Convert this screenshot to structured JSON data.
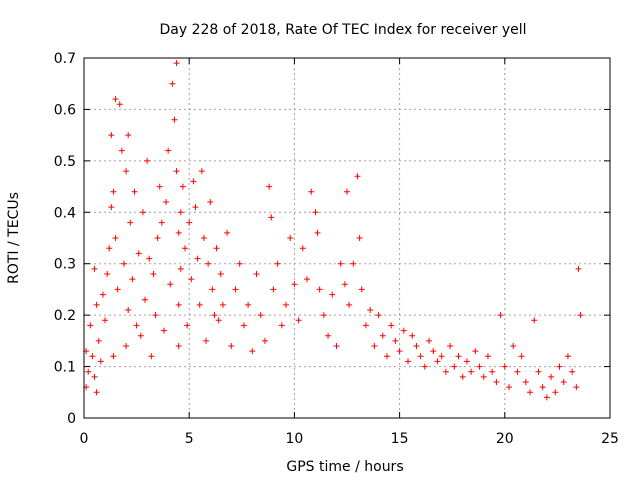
{
  "chart_data": {
    "type": "scatter",
    "title": "Day 228 of 2018, Rate Of TEC Index for receiver yell",
    "xlabel": "GPS time / hours",
    "ylabel": "ROTI / TECUs",
    "xlim": [
      0,
      25
    ],
    "ylim": [
      0,
      0.7
    ],
    "xticks": [
      0,
      5,
      10,
      15,
      20,
      25
    ],
    "yticks": [
      0,
      0.1,
      0.2,
      0.3,
      0.4,
      0.5,
      0.6,
      0.7
    ],
    "xtick_labels": [
      "0",
      "5",
      "10",
      "15",
      "20",
      "25"
    ],
    "ytick_labels": [
      "0",
      "0.1",
      "0.2",
      "0.3",
      "0.4",
      "0.5",
      "0.6",
      "0.7"
    ],
    "grid": true,
    "marker": "plus",
    "marker_color": "#ff0000",
    "series": [
      {
        "name": "ROTI",
        "x": [
          0.1,
          0.1,
          0.2,
          0.3,
          0.4,
          0.5,
          0.5,
          0.6,
          0.6,
          0.7,
          0.8,
          0.9,
          1.0,
          1.1,
          1.2,
          1.3,
          1.3,
          1.4,
          1.4,
          1.5,
          1.5,
          1.6,
          1.7,
          1.8,
          1.9,
          2.0,
          2.0,
          2.1,
          2.1,
          2.2,
          2.3,
          2.4,
          2.5,
          2.6,
          2.7,
          2.8,
          2.9,
          3.0,
          3.1,
          3.2,
          3.3,
          3.4,
          3.5,
          3.6,
          3.7,
          3.8,
          3.9,
          4.0,
          4.1,
          4.2,
          4.3,
          4.4,
          4.4,
          4.5,
          4.5,
          4.5,
          4.6,
          4.6,
          4.7,
          4.8,
          4.9,
          5.0,
          5.1,
          5.2,
          5.3,
          5.4,
          5.5,
          5.6,
          5.7,
          5.8,
          5.9,
          6.0,
          6.1,
          6.2,
          6.3,
          6.4,
          6.5,
          6.6,
          6.8,
          7.0,
          7.2,
          7.4,
          7.6,
          7.8,
          8.0,
          8.2,
          8.4,
          8.6,
          8.8,
          8.9,
          9.0,
          9.2,
          9.4,
          9.6,
          9.8,
          10.0,
          10.2,
          10.4,
          10.6,
          10.8,
          11.0,
          11.1,
          11.2,
          11.4,
          11.6,
          11.8,
          12.0,
          12.2,
          12.4,
          12.5,
          12.6,
          12.8,
          13.0,
          13.1,
          13.2,
          13.4,
          13.6,
          13.8,
          14.0,
          14.2,
          14.4,
          14.6,
          14.8,
          15.0,
          15.2,
          15.4,
          15.6,
          15.8,
          16.0,
          16.2,
          16.4,
          16.6,
          16.8,
          17.0,
          17.2,
          17.4,
          17.6,
          17.8,
          18.0,
          18.2,
          18.4,
          18.6,
          18.8,
          19.0,
          19.2,
          19.4,
          19.6,
          19.8,
          20.0,
          20.2,
          20.4,
          20.6,
          20.8,
          21.0,
          21.2,
          21.4,
          21.6,
          21.8,
          22.0,
          22.2,
          22.4,
          22.6,
          22.8,
          23.0,
          23.2,
          23.4,
          23.5,
          23.6
        ],
        "y": [
          0.13,
          0.06,
          0.09,
          0.18,
          0.12,
          0.29,
          0.08,
          0.22,
          0.05,
          0.15,
          0.11,
          0.24,
          0.19,
          0.28,
          0.33,
          0.55,
          0.41,
          0.44,
          0.12,
          0.35,
          0.62,
          0.25,
          0.61,
          0.52,
          0.3,
          0.48,
          0.14,
          0.55,
          0.21,
          0.38,
          0.27,
          0.44,
          0.18,
          0.32,
          0.16,
          0.4,
          0.23,
          0.5,
          0.31,
          0.12,
          0.28,
          0.2,
          0.35,
          0.45,
          0.38,
          0.17,
          0.42,
          0.52,
          0.26,
          0.65,
          0.58,
          0.69,
          0.48,
          0.36,
          0.22,
          0.14,
          0.4,
          0.29,
          0.45,
          0.33,
          0.18,
          0.38,
          0.27,
          0.46,
          0.41,
          0.31,
          0.22,
          0.48,
          0.35,
          0.15,
          0.3,
          0.42,
          0.25,
          0.2,
          0.33,
          0.19,
          0.28,
          0.22,
          0.36,
          0.14,
          0.25,
          0.3,
          0.18,
          0.22,
          0.13,
          0.28,
          0.2,
          0.15,
          0.45,
          0.39,
          0.25,
          0.3,
          0.18,
          0.22,
          0.35,
          0.26,
          0.19,
          0.33,
          0.27,
          0.44,
          0.4,
          0.36,
          0.25,
          0.2,
          0.16,
          0.24,
          0.14,
          0.3,
          0.26,
          0.44,
          0.22,
          0.3,
          0.47,
          0.35,
          0.25,
          0.18,
          0.21,
          0.14,
          0.2,
          0.16,
          0.12,
          0.18,
          0.15,
          0.13,
          0.17,
          0.11,
          0.16,
          0.14,
          0.12,
          0.1,
          0.15,
          0.13,
          0.11,
          0.12,
          0.09,
          0.14,
          0.1,
          0.12,
          0.08,
          0.11,
          0.09,
          0.13,
          0.1,
          0.08,
          0.12,
          0.09,
          0.07,
          0.2,
          0.1,
          0.06,
          0.14,
          0.09,
          0.12,
          0.07,
          0.05,
          0.19,
          0.09,
          0.06,
          0.04,
          0.08,
          0.05,
          0.1,
          0.07,
          0.12,
          0.09,
          0.06,
          0.29,
          0.2
        ]
      }
    ]
  }
}
